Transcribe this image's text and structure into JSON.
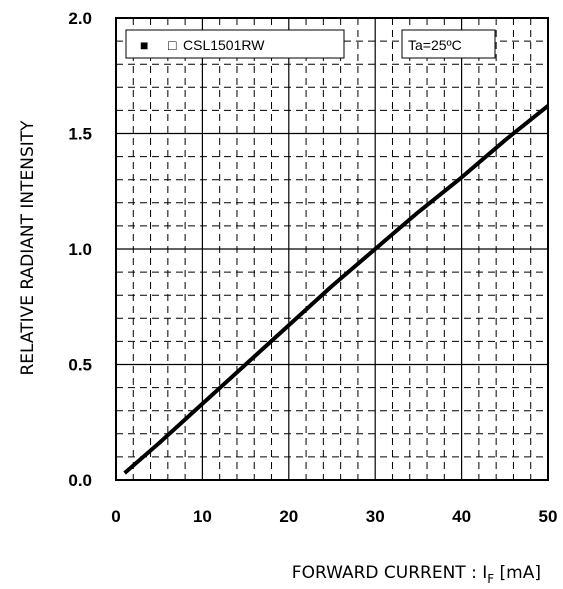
{
  "chart_data": {
    "type": "line",
    "title": "",
    "xlabel": {
      "main": "FORWARD CURRENT : I",
      "sub": "F",
      "unit": " [mA]"
    },
    "ylabel": "RELATIVE RADIANT INTENSITY",
    "xlim": [
      0,
      50
    ],
    "ylim": [
      0,
      2.0
    ],
    "xticks": [
      "0",
      "10",
      "20",
      "30",
      "40",
      "50"
    ],
    "yticks": [
      "0.0",
      "0.5",
      "1.0",
      "1.5",
      "2.0"
    ],
    "grid": true,
    "legend": {
      "position": "top-left",
      "marker": "■",
      "open_marker": "□",
      "label": "CSL1501RW",
      "open_marker_color": "#e8312f"
    },
    "annotation": "Ta=25ºC",
    "series": [
      {
        "name": "CSL1501RW",
        "color": "#000000",
        "x": [
          1,
          5,
          10,
          15,
          20,
          25,
          30,
          35,
          40,
          45,
          50
        ],
        "y": [
          0.03,
          0.16,
          0.33,
          0.5,
          0.67,
          0.84,
          1.0,
          1.16,
          1.31,
          1.47,
          1.62
        ]
      }
    ]
  }
}
